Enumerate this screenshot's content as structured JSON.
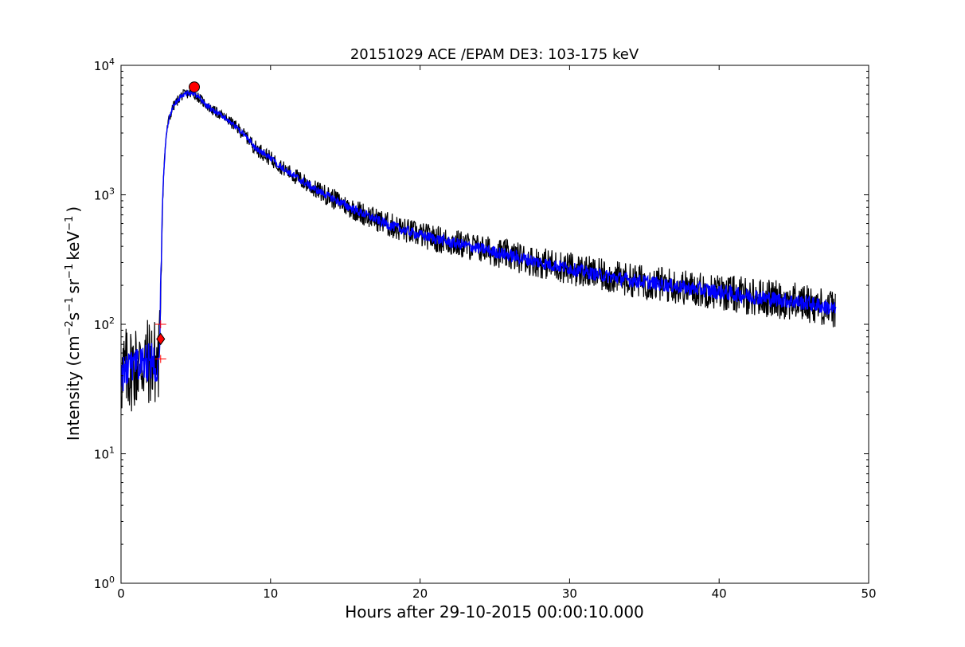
{
  "chart_data": {
    "type": "line",
    "title": "20151029 ACE /EPAM DE3: 103-175 keV",
    "xlabel": "Hours after 29-10-2015 00:00:10.000",
    "ylabel": {
      "prefix": "Intensity (cm",
      "sup1": "−2",
      "mid1": "s",
      "sup2": "−1",
      "mid2": "sr",
      "sup3": "−1",
      "mid3": "keV",
      "sup4": "−1",
      "suffix": ")"
    },
    "xlim": [
      0,
      50
    ],
    "ylim": [
      1,
      10000
    ],
    "yscale": "log",
    "grid": false,
    "x_ticks": [
      0,
      10,
      20,
      30,
      40,
      50
    ],
    "y_ticks": [
      {
        "value": 1,
        "base": "10",
        "exp": "0"
      },
      {
        "value": 10,
        "base": "10",
        "exp": "1"
      },
      {
        "value": 100,
        "base": "10",
        "exp": "2"
      },
      {
        "value": 1000,
        "base": "10",
        "exp": "3"
      },
      {
        "value": 10000,
        "base": "10",
        "exp": "4"
      }
    ],
    "series": [
      {
        "color": "#000000",
        "x": [
          0,
          0.5,
          1.0,
          1.5,
          2.0,
          2.5,
          2.6,
          2.7,
          2.8,
          2.9,
          3.0,
          3.2,
          3.5,
          4.0,
          4.5,
          5.0,
          5.5,
          6.0,
          7.0,
          8.0,
          8.5,
          9.0,
          10.0,
          11.0,
          12.0,
          13.0,
          14.0,
          15.0,
          16.0,
          17.0,
          18.0,
          19.0,
          20.0,
          22.0,
          24.0,
          26.0,
          28.0,
          30.0,
          32.0,
          34.0,
          36.0,
          38.0,
          40.0,
          42.0,
          44.0,
          46.0,
          47.8
        ],
        "y": [
          40,
          45,
          48,
          50,
          52,
          50,
          80,
          300,
          1000,
          1800,
          2700,
          3800,
          4800,
          5800,
          6100,
          5900,
          5200,
          4600,
          3900,
          3100,
          2700,
          2300,
          1900,
          1550,
          1300,
          1100,
          960,
          830,
          730,
          650,
          580,
          530,
          490,
          430,
          385,
          340,
          300,
          270,
          240,
          220,
          205,
          190,
          178,
          165,
          155,
          145,
          130
        ],
        "noise": [
          0.35,
          0.35,
          0.35,
          0.35,
          0.35,
          0.35,
          0.25,
          0.1,
          0.05,
          0.05,
          0.04,
          0.04,
          0.04,
          0.04,
          0.04,
          0.04,
          0.04,
          0.04,
          0.04,
          0.05,
          0.05,
          0.06,
          0.06,
          0.06,
          0.07,
          0.07,
          0.08,
          0.08,
          0.09,
          0.09,
          0.1,
          0.1,
          0.1,
          0.11,
          0.11,
          0.12,
          0.12,
          0.13,
          0.13,
          0.13,
          0.14,
          0.14,
          0.14,
          0.15,
          0.15,
          0.15,
          0.15
        ]
      },
      {
        "color": "#0000ff",
        "x": [
          0,
          0.5,
          1.0,
          1.5,
          2.0,
          2.5,
          2.6,
          2.7,
          2.8,
          2.9,
          3.0,
          3.2,
          3.5,
          4.0,
          4.5,
          5.0,
          5.5,
          6.0,
          7.0,
          8.0,
          8.5,
          9.0,
          10.0,
          11.0,
          12.0,
          13.0,
          14.0,
          15.0,
          16.0,
          17.0,
          18.0,
          19.0,
          20.0,
          22.0,
          24.0,
          26.0,
          28.0,
          30.0,
          32.0,
          34.0,
          36.0,
          38.0,
          40.0,
          42.0,
          44.0,
          46.0,
          47.8
        ],
        "y": [
          40,
          45,
          48,
          50,
          52,
          50,
          80,
          300,
          1000,
          1800,
          2700,
          3800,
          4800,
          5800,
          6100,
          5900,
          5200,
          4600,
          3900,
          3100,
          2700,
          2300,
          1900,
          1550,
          1300,
          1100,
          960,
          830,
          730,
          650,
          580,
          530,
          490,
          430,
          385,
          340,
          300,
          270,
          240,
          220,
          205,
          190,
          178,
          165,
          155,
          145,
          130
        ],
        "noise": [
          0.15,
          0.15,
          0.15,
          0.15,
          0.15,
          0.15,
          0.1,
          0.05,
          0.03,
          0.03,
          0.02,
          0.02,
          0.02,
          0.02,
          0.02,
          0.02,
          0.02,
          0.02,
          0.02,
          0.02,
          0.02,
          0.025,
          0.025,
          0.025,
          0.03,
          0.03,
          0.03,
          0.035,
          0.035,
          0.035,
          0.04,
          0.04,
          0.04,
          0.045,
          0.045,
          0.05,
          0.05,
          0.05,
          0.05,
          0.055,
          0.055,
          0.055,
          0.06,
          0.06,
          0.06,
          0.06,
          0.06
        ]
      }
    ],
    "markers": [
      {
        "type": "circle",
        "x": 4.9,
        "y": 6800,
        "color": "#ff0000"
      },
      {
        "type": "diamond",
        "x": 2.65,
        "y": 77,
        "color": "#ff0000"
      },
      {
        "type": "plus",
        "x": 2.65,
        "y": 100,
        "color": "#ff0000"
      },
      {
        "type": "plus",
        "x": 2.65,
        "y": 54,
        "color": "#ff0000"
      }
    ]
  }
}
